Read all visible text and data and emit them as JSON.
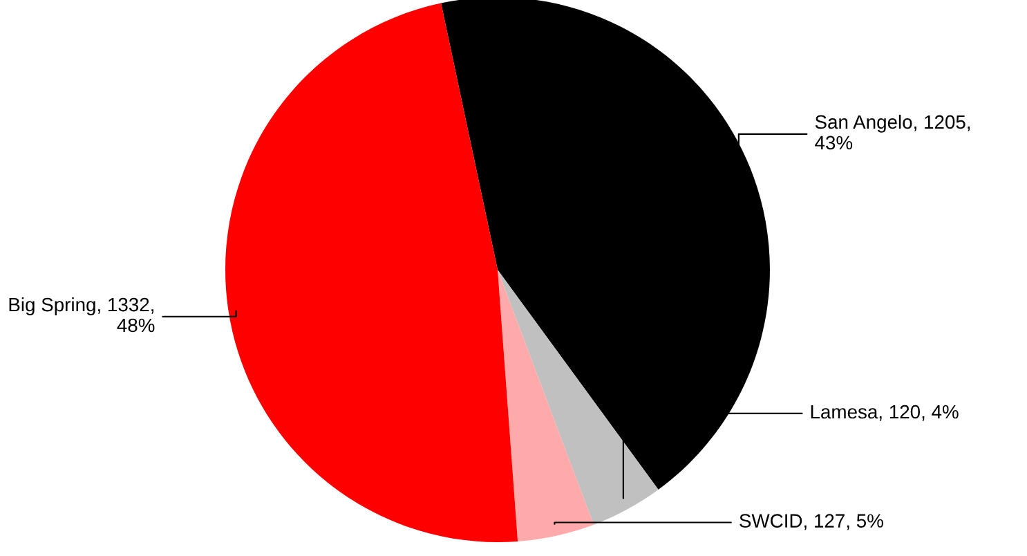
{
  "chart_data": {
    "type": "pie",
    "categories": [
      "San Angelo",
      "Lamesa",
      "SWCID",
      "Big Spring"
    ],
    "values": [
      1205,
      120,
      127,
      1332
    ],
    "value_labels": [
      "1205, 43%",
      "120, 4%",
      "127, 5%",
      "1332, 48%"
    ],
    "colors": [
      "#000000",
      "#c0c0c0",
      "#ffaaaa",
      "#ff0000"
    ]
  }
}
